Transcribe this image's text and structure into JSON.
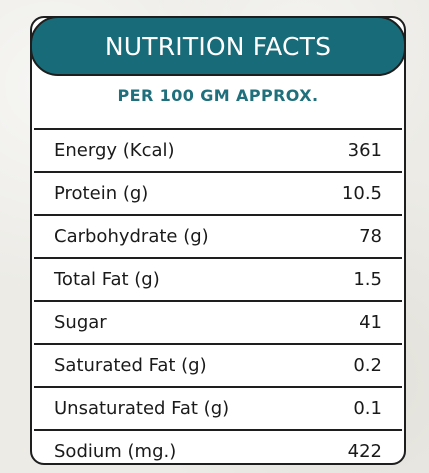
{
  "header": {
    "title": "NUTRITION FACTS",
    "subtitle": "PER 100 GM APPROX."
  },
  "rows": [
    {
      "label": "Energy (Kcal)",
      "value": "361"
    },
    {
      "label": "Protein (g)",
      "value": "10.5"
    },
    {
      "label": "Carbohydrate (g)",
      "value": "78"
    },
    {
      "label": "Total Fat (g)",
      "value": "1.5"
    },
    {
      "label": "Sugar",
      "value": "41"
    },
    {
      "label": "Saturated Fat (g)",
      "value": "0.2"
    },
    {
      "label": "Unsaturated Fat (g)",
      "value": "0.1"
    },
    {
      "label": "Sodium (mg.)",
      "value": "422"
    }
  ],
  "colors": {
    "header_bg": "#186b78",
    "subtitle": "#1f6f7c",
    "border": "#1e1e1e"
  }
}
